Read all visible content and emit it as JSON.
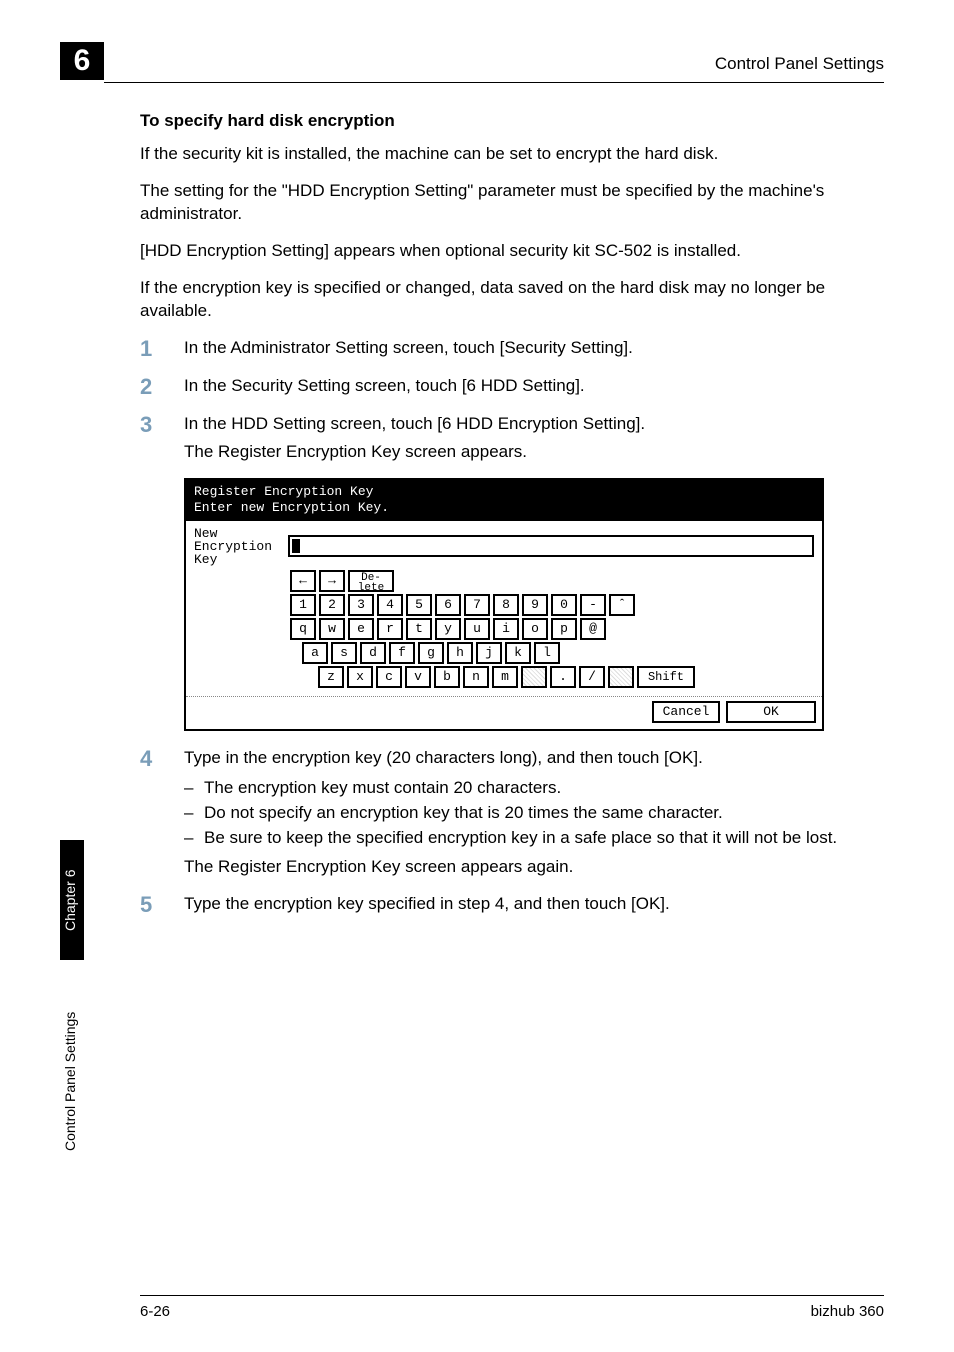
{
  "page": {
    "chapter_number": "6",
    "running_head": "Control Panel Settings",
    "footer_left": "6-26",
    "footer_right": "bizhub 360"
  },
  "sidebar": {
    "chapter_tab": "Chapter 6",
    "section_tab": "Control Panel Settings"
  },
  "subhead": "To specify hard disk encryption",
  "para1": "If the security kit is installed, the machine can be set to encrypt the hard disk.",
  "para2": "The setting for the \"HDD Encryption Setting\" parameter must be specified by the machine's administrator.",
  "para3": "[HDD Encryption Setting] appears when optional security kit SC-502 is installed.",
  "para4": "If the encryption key is specified or changed, data saved on the hard disk may no longer be available.",
  "steps": {
    "s1": {
      "num": "1",
      "text": "In the Administrator Setting screen, touch [Security Setting]."
    },
    "s2": {
      "num": "2",
      "text": "In the Security Setting screen, touch [6 HDD Setting]."
    },
    "s3": {
      "num": "3",
      "text": "In the HDD Setting screen, touch [6 HDD Encryption Setting]."
    },
    "s3b": "The Register Encryption Key screen appears.",
    "s4": {
      "num": "4",
      "text": "Type in the encryption key (20 characters long), and then touch [OK]."
    },
    "s4_bullets": [
      "The encryption key must contain 20 characters.",
      "Do not specify an encryption key that is 20 times the same character.",
      "Be sure to keep the specified encryption key in a safe place so that it will not be lost."
    ],
    "s4_tail": "The Register Encryption Key screen appears again.",
    "s5": {
      "num": "5",
      "text": "Type the encryption key specified in step 4, and then touch [OK]."
    }
  },
  "keyboard": {
    "title_line1": "Register Encryption Key",
    "title_line2": "Enter new Encryption Key.",
    "field_label_1": "New",
    "field_label_2": "Encryption",
    "field_label_3": "Key",
    "keys": {
      "arrow_left": "←",
      "arrow_right": "→",
      "delete_1": "De-",
      "delete_2": "lete",
      "row2": [
        "1",
        "2",
        "3",
        "4",
        "5",
        "6",
        "7",
        "8",
        "9",
        "0",
        "-",
        "ˆ"
      ],
      "row3": [
        "q",
        "w",
        "e",
        "r",
        "t",
        "y",
        "u",
        "i",
        "o",
        "p",
        "@"
      ],
      "row4": [
        "a",
        "s",
        "d",
        "f",
        "g",
        "h",
        "j",
        "k",
        "l"
      ],
      "row5": [
        "z",
        "x",
        "c",
        "v",
        "b",
        "n",
        "m",
        ".",
        "/"
      ],
      "shift": "Shift",
      "cancel": "Cancel",
      "ok": "OK"
    }
  }
}
